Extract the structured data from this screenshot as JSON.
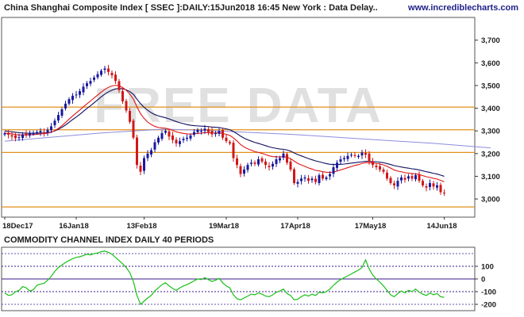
{
  "header": {
    "title": "China Shanghai Composite Index [ SSEC ]:DAILY:15Jun2018 16:45 New York : Data Delay..",
    "site": "www.incrediblecharts.com"
  },
  "watermark": "FREE DATA",
  "colors": {
    "up_candle": "#1a1aa0",
    "down_candle": "#d01818",
    "ema_short": "#e01515",
    "ema_long": "#101060",
    "ma_slow": "#8c8ce0",
    "support_line": "#e0901a",
    "cci_line": "#18c018",
    "cci_band": "#3a1a8a"
  },
  "chart_data": [
    {
      "type": "candlestick",
      "title": "China Shanghai Composite Index [ SSEC ]:DAILY:15Jun2018 16:45 New York : Data Delay..",
      "ylim": [
        2920,
        3800
      ],
      "yticks": [
        3000,
        3100,
        3200,
        3300,
        3400,
        3500,
        3600,
        3700
      ],
      "ytick_labels": [
        "3,000",
        "3,100",
        "3,200",
        "3,300",
        "3,400",
        "3,500",
        "3,600",
        "3,700"
      ],
      "xtick_labels": [
        "18Dec17",
        "16Jan18",
        "13Feb18",
        "19Mar18",
        "17Apr18",
        "17May18",
        "14Jun18"
      ],
      "xtick_positions": [
        0,
        20,
        39,
        62,
        82,
        103,
        123
      ],
      "horizontal_lines": [
        2965,
        3205,
        3305,
        3405
      ],
      "closes": [
        3290,
        3283,
        3275,
        3268,
        3272,
        3285,
        3280,
        3292,
        3288,
        3295,
        3300,
        3290,
        3305,
        3320,
        3345,
        3370,
        3395,
        3420,
        3440,
        3455,
        3460,
        3475,
        3495,
        3510,
        3520,
        3535,
        3550,
        3565,
        3575,
        3560,
        3545,
        3520,
        3480,
        3430,
        3390,
        3340,
        3270,
        3150,
        3120,
        3180,
        3200,
        3215,
        3250,
        3270,
        3290,
        3300,
        3275,
        3260,
        3245,
        3255,
        3265,
        3270,
        3280,
        3295,
        3305,
        3300,
        3310,
        3295,
        3285,
        3290,
        3300,
        3270,
        3255,
        3245,
        3180,
        3150,
        3110,
        3130,
        3150,
        3160,
        3155,
        3175,
        3165,
        3150,
        3140,
        3155,
        3175,
        3180,
        3200,
        3160,
        3130,
        3070,
        3075,
        3090,
        3095,
        3080,
        3090,
        3075,
        3105,
        3090,
        3095,
        3110,
        3140,
        3160,
        3175,
        3180,
        3190,
        3195,
        3190,
        3190,
        3205,
        3195,
        3165,
        3150,
        3140,
        3130,
        3120,
        3090,
        3070,
        3060,
        3080,
        3095,
        3085,
        3100,
        3090,
        3105,
        3080,
        3060,
        3050,
        3070,
        3055,
        3060,
        3030,
        3025
      ],
      "ema_short": [
        3290,
        3289,
        3287,
        3284,
        3282,
        3282,
        3282,
        3283,
        3284,
        3285,
        3287,
        3288,
        3290,
        3294,
        3301,
        3311,
        3323,
        3337,
        3352,
        3366,
        3379,
        3392,
        3406,
        3419,
        3432,
        3445,
        3458,
        3471,
        3483,
        3492,
        3498,
        3501,
        3499,
        3491,
        3479,
        3462,
        3440,
        3406,
        3376,
        3355,
        3339,
        3328,
        3320,
        3315,
        3313,
        3312,
        3308,
        3302,
        3296,
        3292,
        3289,
        3287,
        3286,
        3287,
        3289,
        3290,
        3292,
        3292,
        3291,
        3291,
        3292,
        3289,
        3285,
        3280,
        3269,
        3256,
        3240,
        3229,
        3221,
        3215,
        3209,
        3205,
        3201,
        3196,
        3190,
        3187,
        3186,
        3185,
        3187,
        3184,
        3178,
        3167,
        3157,
        3150,
        3144,
        3137,
        3132,
        3126,
        3124,
        3120,
        3118,
        3117,
        3119,
        3123,
        3128,
        3133,
        3138,
        3143,
        3148,
        3151,
        3157,
        3160,
        3160,
        3159,
        3157,
        3154,
        3150,
        3144,
        3136,
        3128,
        3123,
        3120,
        3116,
        3114,
        3112,
        3111,
        3108,
        3103,
        3098,
        3095,
        3091,
        3088,
        3082,
        3076
      ],
      "ema_long": [
        3300,
        3298,
        3296,
        3294,
        3292,
        3291,
        3290,
        3290,
        3290,
        3290,
        3291,
        3291,
        3292,
        3295,
        3300,
        3307,
        3316,
        3326,
        3338,
        3350,
        3361,
        3373,
        3386,
        3399,
        3411,
        3424,
        3437,
        3450,
        3462,
        3472,
        3479,
        3485,
        3487,
        3486,
        3481,
        3473,
        3461,
        3440,
        3420,
        3404,
        3391,
        3380,
        3372,
        3366,
        3362,
        3358,
        3353,
        3347,
        3341,
        3336,
        3332,
        3328,
        3325,
        3323,
        3322,
        3321,
        3320,
        3319,
        3317,
        3316,
        3315,
        3312,
        3309,
        3305,
        3297,
        3288,
        3277,
        3268,
        3261,
        3255,
        3249,
        3245,
        3240,
        3235,
        3230,
        3226,
        3223,
        3220,
        3219,
        3216,
        3211,
        3203,
        3196,
        3190,
        3184,
        3178,
        3173,
        3168,
        3164,
        3160,
        3156,
        3153,
        3152,
        3152,
        3153,
        3154,
        3156,
        3158,
        3160,
        3162,
        3164,
        3166,
        3166,
        3165,
        3164,
        3162,
        3160,
        3156,
        3152,
        3147,
        3144,
        3141,
        3138,
        3136,
        3133,
        3131,
        3128,
        3124,
        3120,
        3117,
        3113,
        3110,
        3105,
        3100
      ],
      "ma_slow_points": [
        [
          0,
          3255
        ],
        [
          28,
          3292
        ],
        [
          45,
          3308
        ],
        [
          62,
          3298
        ],
        [
          80,
          3285
        ],
        [
          100,
          3265
        ],
        [
          120,
          3245
        ],
        [
          136,
          3225
        ]
      ]
    },
    {
      "type": "line",
      "title": "COMMODITY CHANNEL INDEX DAILY 40 PERIODS",
      "ylim": [
        -250,
        250
      ],
      "yticks": [
        100,
        0,
        -100,
        -200
      ],
      "ytick_labels": [
        "100",
        "0",
        "-100",
        "-200"
      ],
      "bands": [
        200,
        100,
        0,
        -100,
        -200
      ],
      "values": [
        -110,
        -130,
        -125,
        -100,
        -90,
        -60,
        -70,
        -95,
        -85,
        -50,
        -40,
        -35,
        -10,
        20,
        60,
        90,
        110,
        130,
        145,
        160,
        170,
        175,
        185,
        195,
        190,
        200,
        205,
        215,
        220,
        210,
        195,
        170,
        145,
        120,
        90,
        50,
        -20,
        -130,
        -200,
        -175,
        -150,
        -130,
        -95,
        -70,
        -45,
        -30,
        -55,
        -75,
        -90,
        -70,
        -55,
        -45,
        -30,
        -15,
        0,
        -5,
        10,
        -5,
        -20,
        -10,
        5,
        -30,
        -55,
        -70,
        -125,
        -155,
        -165,
        -150,
        -135,
        -120,
        -125,
        -110,
        -120,
        -135,
        -140,
        -125,
        -105,
        -95,
        -80,
        -115,
        -130,
        -165,
        -160,
        -140,
        -125,
        -135,
        -120,
        -130,
        -105,
        -110,
        -100,
        -80,
        -50,
        -25,
        -5,
        10,
        25,
        40,
        55,
        70,
        90,
        150,
        80,
        30,
        0,
        -25,
        -55,
        -90,
        -125,
        -140,
        -115,
        -95,
        -110,
        -90,
        -100,
        -80,
        -105,
        -120,
        -130,
        -110,
        -125,
        -115,
        -140,
        -145
      ]
    }
  ]
}
